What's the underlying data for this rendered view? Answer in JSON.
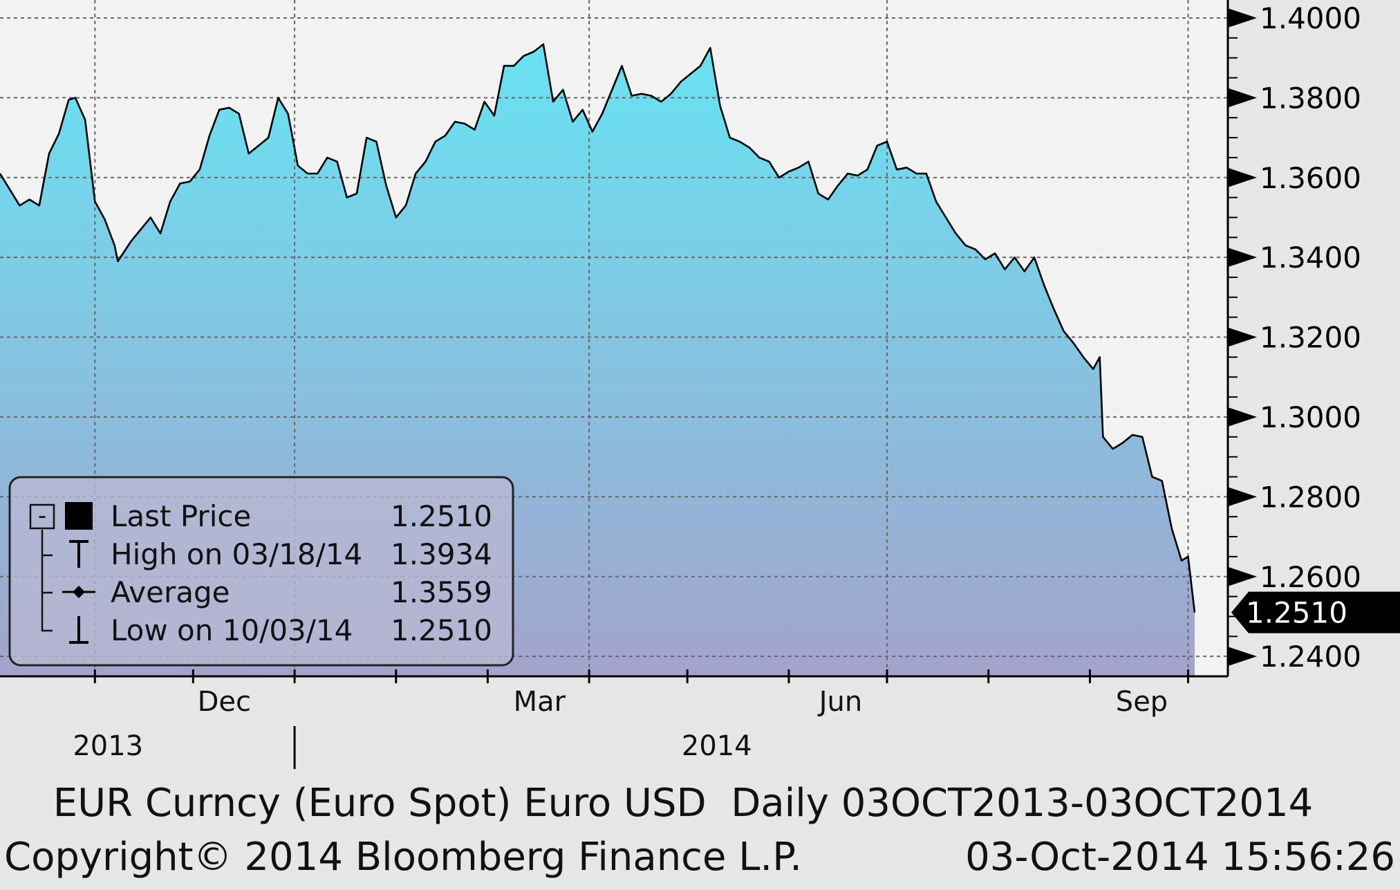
{
  "chart_data": {
    "type": "area",
    "x_range": [
      "2013-10-03",
      "2014-10-03"
    ],
    "ylim": [
      1.235,
      1.4045
    ],
    "grid": true,
    "y_ticks": [
      "1.4000",
      "1.3800",
      "1.3600",
      "1.3400",
      "1.3200",
      "1.3000",
      "1.2800",
      "1.2600",
      "1.2400"
    ],
    "month_ticks": [
      {
        "label": "Dec",
        "date": "2013-12-01"
      },
      {
        "label": "Mar",
        "date": "2014-03-01"
      },
      {
        "label": "Jun",
        "date": "2014-06-01"
      },
      {
        "label": "Sep",
        "date": "2014-09-01"
      }
    ],
    "year_labels": [
      {
        "label": "2013",
        "date": "2013-11-05"
      },
      {
        "label": "2014",
        "date": "2014-05-10"
      }
    ],
    "last_price_label": "1.2510",
    "series": [
      {
        "name": "Last Price",
        "points": [
          [
            "2013-10-03",
            1.361
          ],
          [
            "2013-10-06",
            1.357
          ],
          [
            "2013-10-09",
            1.353
          ],
          [
            "2013-10-12",
            1.3545
          ],
          [
            "2013-10-15",
            1.353
          ],
          [
            "2013-10-18",
            1.366
          ],
          [
            "2013-10-21",
            1.371
          ],
          [
            "2013-10-24",
            1.3795
          ],
          [
            "2013-10-26",
            1.38
          ],
          [
            "2013-10-29",
            1.3745
          ],
          [
            "2013-11-01",
            1.354
          ],
          [
            "2013-11-04",
            1.3495
          ],
          [
            "2013-11-07",
            1.343
          ],
          [
            "2013-11-08",
            1.339
          ],
          [
            "2013-11-12",
            1.344
          ],
          [
            "2013-11-15",
            1.347
          ],
          [
            "2013-11-18",
            1.35
          ],
          [
            "2013-11-21",
            1.346
          ],
          [
            "2013-11-24",
            1.354
          ],
          [
            "2013-11-27",
            1.3585
          ],
          [
            "2013-11-30",
            1.359
          ],
          [
            "2013-12-03",
            1.362
          ],
          [
            "2013-12-06",
            1.3705
          ],
          [
            "2013-12-09",
            1.377
          ],
          [
            "2013-12-12",
            1.3775
          ],
          [
            "2013-12-15",
            1.376
          ],
          [
            "2013-12-18",
            1.366
          ],
          [
            "2013-12-21",
            1.368
          ],
          [
            "2013-12-24",
            1.37
          ],
          [
            "2013-12-27",
            1.38
          ],
          [
            "2013-12-30",
            1.376
          ],
          [
            "2014-01-02",
            1.363
          ],
          [
            "2014-01-05",
            1.361
          ],
          [
            "2014-01-08",
            1.361
          ],
          [
            "2014-01-11",
            1.365
          ],
          [
            "2014-01-14",
            1.364
          ],
          [
            "2014-01-17",
            1.355
          ],
          [
            "2014-01-20",
            1.356
          ],
          [
            "2014-01-23",
            1.37
          ],
          [
            "2014-01-26",
            1.369
          ],
          [
            "2014-01-29",
            1.358
          ],
          [
            "2014-02-01",
            1.35
          ],
          [
            "2014-02-04",
            1.353
          ],
          [
            "2014-02-07",
            1.361
          ],
          [
            "2014-02-10",
            1.364
          ],
          [
            "2014-02-13",
            1.369
          ],
          [
            "2014-02-16",
            1.3705
          ],
          [
            "2014-02-19",
            1.374
          ],
          [
            "2014-02-22",
            1.3735
          ],
          [
            "2014-02-25",
            1.372
          ],
          [
            "2014-02-28",
            1.379
          ],
          [
            "2014-03-03",
            1.3755
          ],
          [
            "2014-03-06",
            1.388
          ],
          [
            "2014-03-09",
            1.388
          ],
          [
            "2014-03-12",
            1.3905
          ],
          [
            "2014-03-15",
            1.3915
          ],
          [
            "2014-03-18",
            1.3934
          ],
          [
            "2014-03-21",
            1.379
          ],
          [
            "2014-03-24",
            1.382
          ],
          [
            "2014-03-27",
            1.374
          ],
          [
            "2014-03-30",
            1.377
          ],
          [
            "2014-04-02",
            1.3715
          ],
          [
            "2014-04-05",
            1.376
          ],
          [
            "2014-04-08",
            1.382
          ],
          [
            "2014-04-11",
            1.388
          ],
          [
            "2014-04-14",
            1.3805
          ],
          [
            "2014-04-17",
            1.381
          ],
          [
            "2014-04-20",
            1.3805
          ],
          [
            "2014-04-23",
            1.379
          ],
          [
            "2014-04-26",
            1.381
          ],
          [
            "2014-04-29",
            1.384
          ],
          [
            "2014-05-02",
            1.386
          ],
          [
            "2014-05-05",
            1.388
          ],
          [
            "2014-05-08",
            1.3925
          ],
          [
            "2014-05-11",
            1.378
          ],
          [
            "2014-05-14",
            1.37
          ],
          [
            "2014-05-17",
            1.369
          ],
          [
            "2014-05-20",
            1.3675
          ],
          [
            "2014-05-23",
            1.365
          ],
          [
            "2014-05-26",
            1.364
          ],
          [
            "2014-05-29",
            1.36
          ],
          [
            "2014-06-01",
            1.3615
          ],
          [
            "2014-06-04",
            1.3625
          ],
          [
            "2014-06-07",
            1.364
          ],
          [
            "2014-06-10",
            1.356
          ],
          [
            "2014-06-13",
            1.3545
          ],
          [
            "2014-06-16",
            1.358
          ],
          [
            "2014-06-19",
            1.361
          ],
          [
            "2014-06-22",
            1.3605
          ],
          [
            "2014-06-25",
            1.362
          ],
          [
            "2014-06-28",
            1.368
          ],
          [
            "2014-07-01",
            1.369
          ],
          [
            "2014-07-04",
            1.362
          ],
          [
            "2014-07-07",
            1.3625
          ],
          [
            "2014-07-10",
            1.361
          ],
          [
            "2014-07-13",
            1.361
          ],
          [
            "2014-07-16",
            1.354
          ],
          [
            "2014-07-19",
            1.35
          ],
          [
            "2014-07-22",
            1.346
          ],
          [
            "2014-07-25",
            1.343
          ],
          [
            "2014-07-28",
            1.342
          ],
          [
            "2014-07-31",
            1.3395
          ],
          [
            "2014-08-03",
            1.341
          ],
          [
            "2014-08-06",
            1.337
          ],
          [
            "2014-08-09",
            1.34
          ],
          [
            "2014-08-12",
            1.3365
          ],
          [
            "2014-08-15",
            1.34
          ],
          [
            "2014-08-18",
            1.333
          ],
          [
            "2014-08-21",
            1.327
          ],
          [
            "2014-08-24",
            1.3215
          ],
          [
            "2014-08-27",
            1.3185
          ],
          [
            "2014-08-30",
            1.315
          ],
          [
            "2014-09-02",
            1.312
          ],
          [
            "2014-09-04",
            1.315
          ],
          [
            "2014-09-05",
            1.295
          ],
          [
            "2014-09-08",
            1.292
          ],
          [
            "2014-09-11",
            1.2935
          ],
          [
            "2014-09-14",
            1.2955
          ],
          [
            "2014-09-17",
            1.295
          ],
          [
            "2014-09-20",
            1.285
          ],
          [
            "2014-09-23",
            1.284
          ],
          [
            "2014-09-26",
            1.272
          ],
          [
            "2014-09-29",
            1.264
          ],
          [
            "2014-10-01",
            1.265
          ],
          [
            "2014-10-03",
            1.251
          ]
        ]
      }
    ],
    "legend": {
      "placement": "bottom-left",
      "collapse_glyph": "-",
      "items": [
        {
          "label": "Last Price",
          "value": "1.2510",
          "marker": "square"
        },
        {
          "label": "High on 03/18/14",
          "value": "1.3934",
          "marker": "high"
        },
        {
          "label": "Average",
          "value": "1.3559",
          "marker": "average"
        },
        {
          "label": "Low on 10/03/14",
          "value": "1.2510",
          "marker": "low"
        }
      ]
    },
    "colors": {
      "area_top": "#67e3f3",
      "area_bottom": "#a3a3cc",
      "line": "#000000",
      "plot_background": "#f2f2f2",
      "page_background": "#e6e6e6",
      "legend_background": "#b8b9d2",
      "grid": "#666666"
    }
  },
  "footer": {
    "line1": "EUR Curncy (Euro Spot) Euro USD  Daily 03OCT2013-03OCT2014",
    "line2_left": "Copyright© 2014 Bloomberg Finance L.P.",
    "line2_right": "03-Oct-2014 15:56:26"
  }
}
